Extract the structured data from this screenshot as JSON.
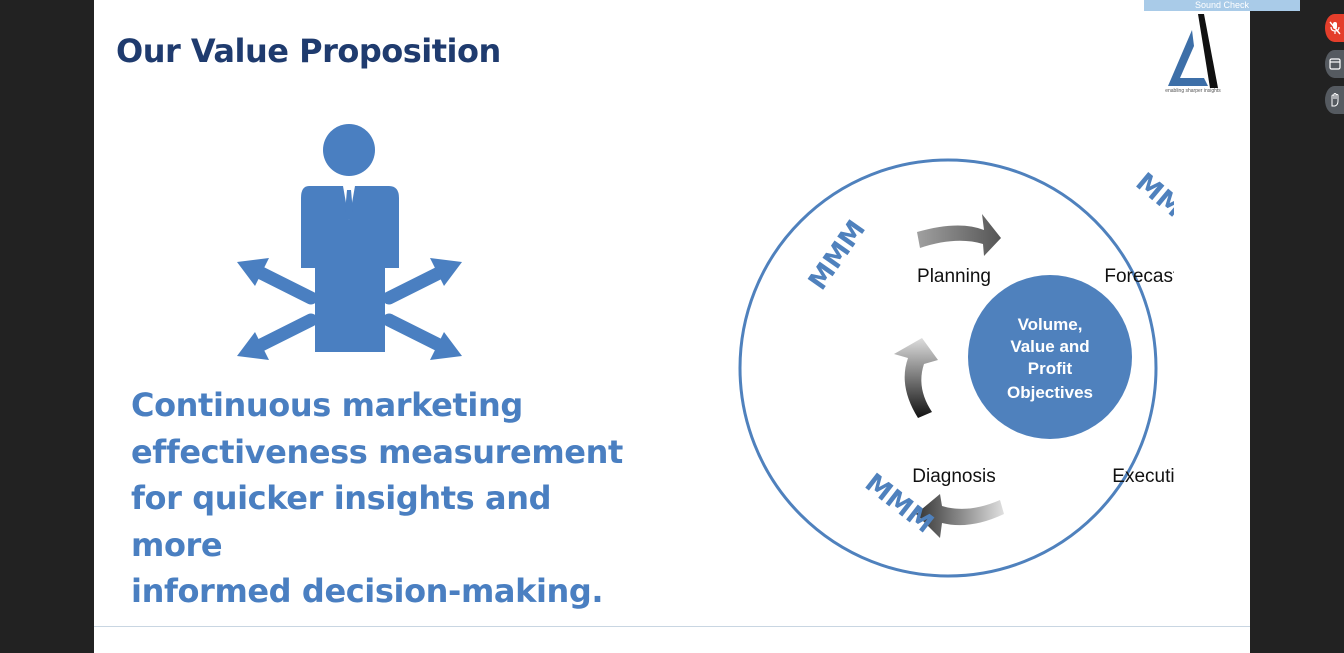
{
  "slide": {
    "title": "Our Value Proposition",
    "tagline_lines": [
      "Continuous marketing",
      "effectiveness measurement",
      "for quicker insights and more",
      "informed decision-making."
    ],
    "logo": {
      "icon": "triangle-logo-icon",
      "tagline": "enabling sharper insights"
    }
  },
  "cycle": {
    "center_lines": [
      "Volume,",
      "Value and",
      "Profit",
      "Objectives"
    ],
    "stages": [
      "Planning",
      "Forecasting",
      "Executing",
      "Diagnosis"
    ],
    "ring_label": "MMM"
  },
  "overlay": {
    "sound_check": "Sound Check",
    "toolbar_icons": [
      "mic-muted-icon",
      "window-icon",
      "hand-icon"
    ]
  },
  "colors": {
    "title": "#1f3b6e",
    "accent": "#4a7fc1",
    "ring": "#4f81bd",
    "center_circle": "#4f81bd"
  }
}
